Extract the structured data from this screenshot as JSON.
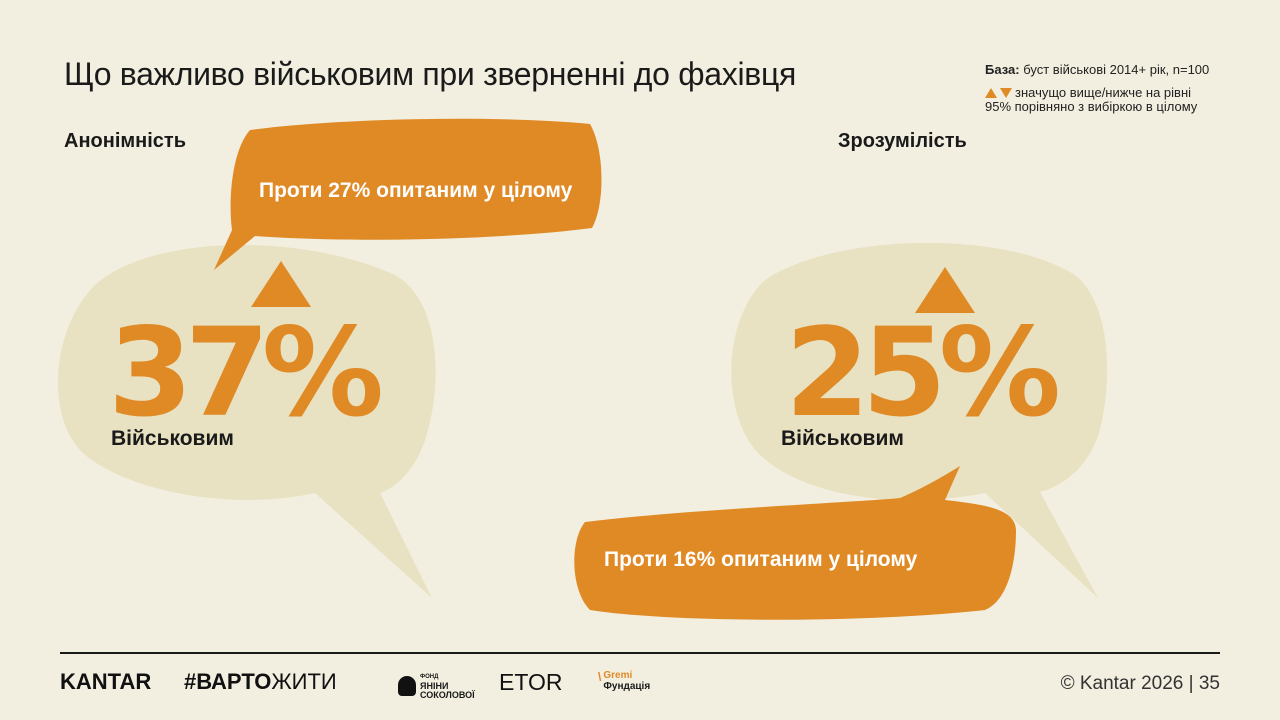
{
  "title": "Що важливо військовим при зверненні до фахівця",
  "base": {
    "label": "База:",
    "text": "буст військові 2014+ рік, n=100"
  },
  "legend": {
    "text_line1": "значущо вище/нижче на рівні",
    "text_line2": "95% порівняно з вибіркою в цілому"
  },
  "colors": {
    "accent": "#e08a26",
    "bubble": "#e8e2c2",
    "background": "#f2efe0"
  },
  "left_panel": {
    "heading": "Анонімність",
    "value": "37%",
    "subject": "Військовим",
    "callout": "Проти 27% опитаним у цілому",
    "indicator": "arrow-up-icon"
  },
  "right_panel": {
    "heading": "Зрозумілість",
    "value": "25%",
    "subject": "Військовим",
    "callout": "Проти 16% опитаним у цілому",
    "indicator": "arrow-up-icon"
  },
  "footer": {
    "logos": {
      "kantar": "KANTAR",
      "varto_hash": "#",
      "varto_bold": "ВАРТО",
      "varto_rest": "ЖИТИ",
      "fond_line1": "ФОНД",
      "fond_line2": "ЯНІНИ",
      "fond_line3": "СОКОЛОВОЇ",
      "etor": "ETOR",
      "gremi_line1": "Gremi",
      "gremi_line2": "Фундація"
    },
    "copyright": "© Kantar 2026 | 35"
  }
}
